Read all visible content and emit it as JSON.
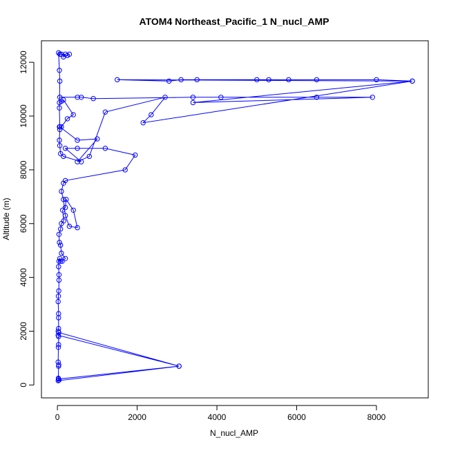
{
  "chart_data": {
    "type": "line",
    "title": "ATOM4 Northeast_Pacific_1 N_nucl_AMP",
    "xlabel": "N_nucl_AMP",
    "ylabel": "Altitude (m)",
    "xlim": [
      -400,
      9300
    ],
    "ylim": [
      -480,
      12800
    ],
    "x_ticks": [
      0,
      2000,
      4000,
      6000,
      8000
    ],
    "y_ticks": [
      0,
      2000,
      4000,
      6000,
      8000,
      10000,
      12000
    ],
    "grid": false,
    "legend": "none",
    "color": "#0000ff",
    "series": [
      {
        "points": [
          [
            40,
            180
          ],
          [
            30,
            220
          ],
          [
            3050,
            700
          ],
          [
            20,
            160
          ],
          [
            25,
            250
          ],
          [
            30,
            700
          ],
          [
            35,
            750
          ],
          [
            20,
            850
          ],
          [
            25,
            1400
          ],
          [
            30,
            1500
          ],
          [
            30,
            1800
          ],
          [
            35,
            1950
          ],
          [
            3050,
            700
          ],
          [
            20,
            1850
          ],
          [
            20,
            2000
          ],
          [
            30,
            2100
          ],
          [
            30,
            2500
          ],
          [
            30,
            2650
          ],
          [
            20,
            3100
          ],
          [
            25,
            3300
          ],
          [
            35,
            3500
          ],
          [
            40,
            3900
          ],
          [
            40,
            4100
          ],
          [
            30,
            4400
          ],
          [
            40,
            4600
          ],
          [
            60,
            4700
          ],
          [
            80,
            4600
          ],
          [
            120,
            4600
          ],
          [
            200,
            4700
          ],
          [
            100,
            4900
          ],
          [
            80,
            5200
          ],
          [
            50,
            5300
          ],
          [
            40,
            5600
          ],
          [
            80,
            5800
          ],
          [
            100,
            6000
          ],
          [
            160,
            6100
          ],
          [
            130,
            6500
          ],
          [
            200,
            6600
          ],
          [
            220,
            6900
          ],
          [
            400,
            6500
          ],
          [
            500,
            5850
          ],
          [
            300,
            5900
          ],
          [
            200,
            6300
          ],
          [
            150,
            6900
          ],
          [
            100,
            7200
          ],
          [
            150,
            7500
          ],
          [
            200,
            7600
          ],
          [
            1700,
            8000
          ],
          [
            1950,
            8550
          ],
          [
            1200,
            8800
          ],
          [
            500,
            8800
          ],
          [
            200,
            8800
          ],
          [
            600,
            8300
          ],
          [
            150,
            8500
          ],
          [
            80,
            8600
          ],
          [
            60,
            8900
          ],
          [
            50,
            9100
          ],
          [
            60,
            9500
          ],
          [
            50,
            9600
          ],
          [
            100,
            9600
          ],
          [
            250,
            9900
          ],
          [
            400,
            10050
          ],
          [
            150,
            10600
          ],
          [
            100,
            10550
          ],
          [
            50,
            10500
          ],
          [
            60,
            10700
          ],
          [
            500,
            10700
          ],
          [
            600,
            10700
          ],
          [
            900,
            10650
          ],
          [
            3400,
            10700
          ],
          [
            4100,
            10700
          ],
          [
            6500,
            10700
          ],
          [
            7900,
            10700
          ],
          [
            3400,
            10500
          ],
          [
            8900,
            11300
          ],
          [
            8000,
            11350
          ],
          [
            6500,
            11350
          ],
          [
            5800,
            11350
          ],
          [
            5300,
            11350
          ],
          [
            5000,
            11350
          ],
          [
            3500,
            11350
          ],
          [
            3100,
            11350
          ],
          [
            2800,
            11300
          ],
          [
            1500,
            11350
          ],
          [
            8900,
            11300
          ],
          [
            2150,
            9750
          ],
          [
            2350,
            10050
          ],
          [
            2700,
            10700
          ],
          [
            1200,
            10150
          ],
          [
            800,
            8500
          ],
          [
            500,
            8300
          ],
          [
            1000,
            9150
          ],
          [
            500,
            9100
          ],
          [
            60,
            9600
          ],
          [
            50,
            10300
          ],
          [
            60,
            11300
          ],
          [
            50,
            11700
          ],
          [
            30,
            12350
          ],
          [
            60,
            12300
          ],
          [
            100,
            12300
          ],
          [
            200,
            12300
          ],
          [
            150,
            12200
          ],
          [
            300,
            12300
          ],
          [
            250,
            12250
          ]
        ]
      }
    ]
  }
}
